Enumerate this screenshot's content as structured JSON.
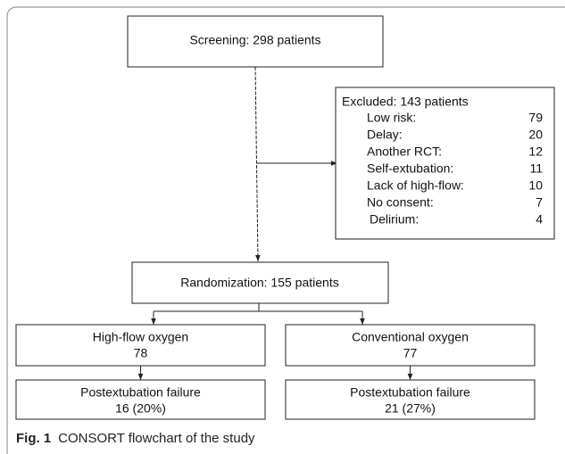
{
  "screening": {
    "label": "Screening: 298 patients"
  },
  "excluded": {
    "title": "Excluded: 143 patients",
    "reasons": [
      {
        "label": "Low risk:",
        "count": 79
      },
      {
        "label": "Delay:",
        "count": 20
      },
      {
        "label": "Another RCT:",
        "count": 12
      },
      {
        "label": "Self-extubation:",
        "count": 11
      },
      {
        "label": "Lack of high-flow:",
        "count": 10
      },
      {
        "label": "No consent:",
        "count": 7
      },
      {
        "label": "Delirium:",
        "count": 4
      }
    ]
  },
  "randomization": {
    "label": "Randomization: 155 patients"
  },
  "arms": [
    {
      "name": "High-flow oxygen",
      "count": 78,
      "outcome_label": "Postextubation failure",
      "outcome": "16 (20%)"
    },
    {
      "name": "Conventional oxygen",
      "count": 77,
      "outcome_label": "Postextubation failure",
      "outcome": "21 (27%)"
    }
  ],
  "caption": {
    "label": "Fig. 1",
    "text": "CONSORT flowchart of the study"
  }
}
